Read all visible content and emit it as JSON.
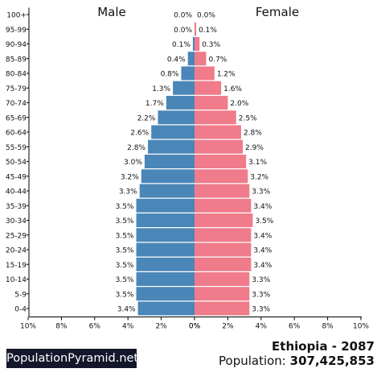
{
  "chart_data": {
    "type": "bar",
    "subtype": "population-pyramid",
    "categories": [
      "100+",
      "95-99",
      "90-94",
      "85-89",
      "80-84",
      "75-79",
      "70-74",
      "65-69",
      "60-64",
      "55-59",
      "50-54",
      "45-49",
      "40-44",
      "35-39",
      "30-34",
      "25-29",
      "20-24",
      "15-19",
      "10-14",
      "5-9",
      "0-4"
    ],
    "series": [
      {
        "name": "Male",
        "color": "#4b86b8",
        "values": [
          0.0,
          0.0,
          0.1,
          0.4,
          0.8,
          1.3,
          1.7,
          2.2,
          2.6,
          2.8,
          3.0,
          3.2,
          3.3,
          3.5,
          3.5,
          3.5,
          3.5,
          3.5,
          3.5,
          3.5,
          3.4
        ],
        "labels": [
          "0.0%",
          "0.0%",
          "0.1%",
          "0.4%",
          "0.8%",
          "1.3%",
          "1.7%",
          "2.2%",
          "2.6%",
          "2.8%",
          "3.0%",
          "3.2%",
          "3.3%",
          "3.5%",
          "3.5%",
          "3.5%",
          "3.5%",
          "3.5%",
          "3.5%",
          "3.5%",
          "3.4%"
        ]
      },
      {
        "name": "Female",
        "color": "#ef7b8b",
        "values": [
          0.0,
          0.1,
          0.3,
          0.7,
          1.2,
          1.6,
          2.0,
          2.5,
          2.8,
          2.9,
          3.1,
          3.2,
          3.3,
          3.4,
          3.5,
          3.4,
          3.4,
          3.4,
          3.3,
          3.3,
          3.3
        ],
        "labels": [
          "0.0%",
          "0.1%",
          "0.3%",
          "0.7%",
          "1.2%",
          "1.6%",
          "2.0%",
          "2.5%",
          "2.8%",
          "2.9%",
          "3.1%",
          "3.2%",
          "3.3%",
          "3.4%",
          "3.5%",
          "3.4%",
          "3.4%",
          "3.4%",
          "3.3%",
          "3.3%",
          "3.3%"
        ]
      }
    ],
    "xlim": [
      0,
      10
    ],
    "xticks_left": [
      "10%",
      "8%",
      "6%",
      "4%",
      "2%",
      "0%"
    ],
    "xticks_right": [
      "0%",
      "2%",
      "4%",
      "6%",
      "8%",
      "10%"
    ],
    "grid": false,
    "legend": "top"
  },
  "brand": "PopulationPyramid.net",
  "country_year": "Ethiopia - 2087",
  "population_label": "Population:",
  "population_value": "307,425,853"
}
